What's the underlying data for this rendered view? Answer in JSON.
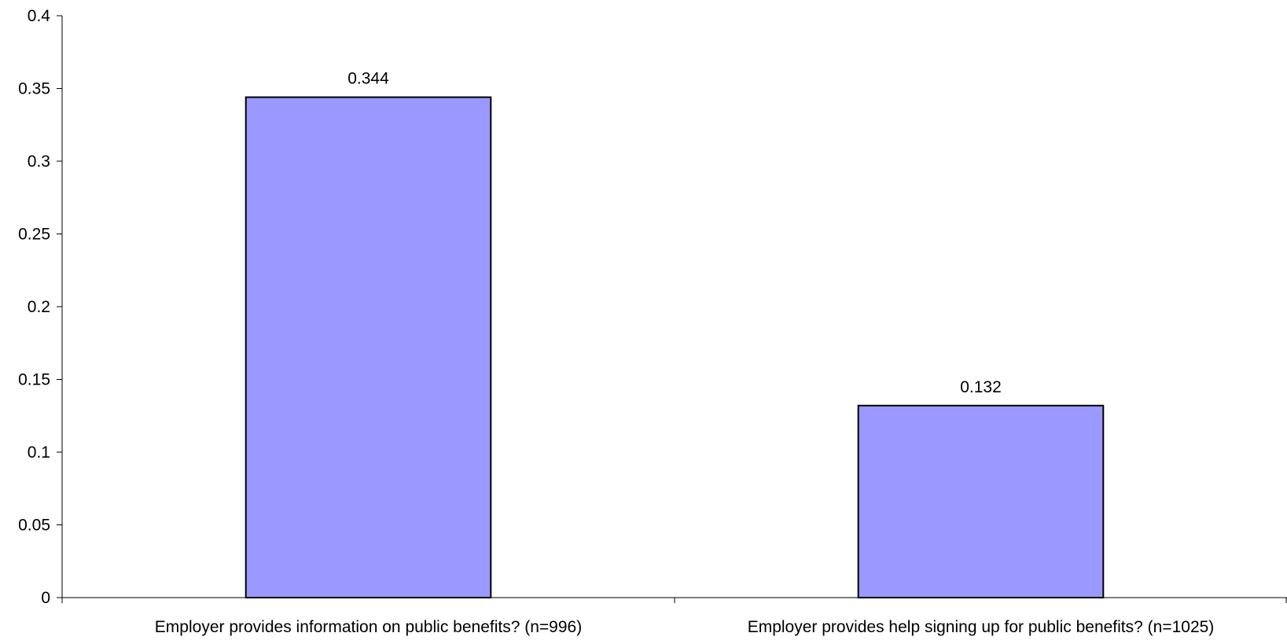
{
  "chart_data": {
    "type": "bar",
    "title": "",
    "xlabel": "",
    "ylabel": "",
    "categories": [
      "Employer provides information on public benefits? (n=996)",
      "Employer provides help signing up for public benefits? (n=1025)"
    ],
    "values": [
      0.344,
      0.132
    ],
    "data_labels": [
      "0.344",
      "0.132"
    ],
    "ylim": [
      0,
      0.4
    ],
    "yticks": [
      0,
      0.05,
      0.1,
      0.15,
      0.2,
      0.25,
      0.3,
      0.35,
      0.4
    ],
    "ytick_labels": [
      "0",
      "0.05",
      "0.1",
      "0.15",
      "0.2",
      "0.25",
      "0.3",
      "0.35",
      "0.4"
    ],
    "grid": false,
    "legend": "none",
    "bar_color": "#9999FF",
    "bar_edge_color": "#000000"
  }
}
